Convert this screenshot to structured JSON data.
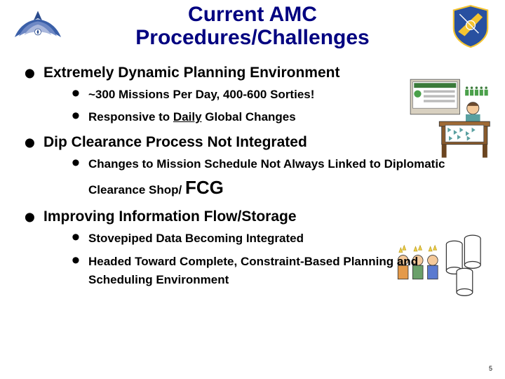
{
  "title_line1": "Current AMC",
  "title_line2": "Procedures/Challenges",
  "title_fontsize": 30,
  "title_color": "#000080",
  "l1_fontsize": 21,
  "l2_fontsize": 17,
  "bullets": [
    {
      "text": "Extremely Dynamic Planning Environment",
      "sub": [
        {
          "text": "~300 Missions Per Day, 400-600 Sorties!"
        },
        {
          "pre": "Responsive to ",
          "u": "Daily",
          "post": " Global Changes"
        }
      ]
    },
    {
      "text": "Dip Clearance Process Not Integrated",
      "sub": [
        {
          "pre": "Changes to Mission Schedule Not Always Linked to Diplomatic Clearance Shop/ ",
          "big": "FCG"
        }
      ]
    },
    {
      "text": "Improving Information Flow/Storage",
      "sub": [
        {
          "text": "Stovepiped Data Becoming Integrated"
        },
        {
          "text": "Headed Toward Complete, Constraint-Based Planning and Scheduling Environment"
        }
      ]
    }
  ],
  "big_fontsize": 26,
  "page_number": "5",
  "line_height_l2": 1.55
}
